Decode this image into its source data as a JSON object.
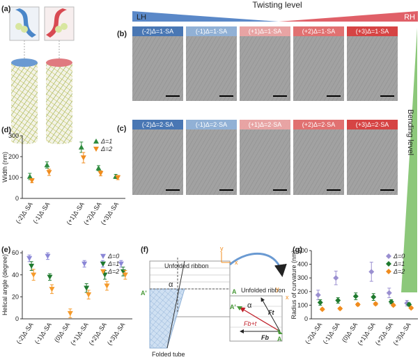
{
  "panel_labels": [
    "(a)",
    "(b)",
    "(c)",
    "(d)",
    "(e)",
    "(f)",
    "(g)"
  ],
  "twisting": {
    "left": "LH",
    "title": "Twisting level",
    "right": "RH"
  },
  "bending": "Bending level",
  "row_b": [
    "(-2)Δ=1·SA",
    "(-1)Δ=1·SA",
    "(+1)Δ=1·SA",
    "(+2)Δ=1·SA",
    "(+3)Δ=1·SA"
  ],
  "row_c": [
    "(-2)Δ=2·SA",
    "(-1)Δ=2·SA",
    "(+1)Δ=2·SA",
    "(+2)Δ=2·SA",
    "(+3)Δ=2·SA"
  ],
  "diagram_f": {
    "unfolded_top": "Unfolded ribbon",
    "alpha": "α",
    "a_prime": "A'",
    "a": "A",
    "folded": "Folded tube",
    "unfolded_right": "Unfolded ribbon",
    "alpha2": "α",
    "a_prime2": "A'",
    "a2": "A",
    "ft": "Ft",
    "fb": "Fb",
    "fbt": "Fb+t",
    "y": "y",
    "x": "x",
    "y2": "y",
    "x2": "x"
  },
  "chart_data": [
    {
      "type": "scatter",
      "y_label": "Width (nm)",
      "categories": [
        "(-2)Δ·SA",
        "(-1)Δ·SA",
        null,
        "(+1)Δ·SA",
        "(+2)Δ·SA",
        "(+3)Δ·SA"
      ],
      "ylim": [
        0,
        300
      ],
      "yticks": [
        0,
        100,
        200,
        300
      ],
      "legend": "upper right",
      "series": [
        {
          "name": "Δ=1",
          "color": "#2e8b3e",
          "marker": "triangle-up",
          "values": [
            105,
            160,
            null,
            245,
            145,
            105
          ],
          "errors": [
            15,
            15,
            null,
            25,
            12,
            10
          ]
        },
        {
          "name": "Δ=2",
          "color": "#f08c1e",
          "marker": "triangle-down",
          "values": [
            85,
            125,
            null,
            195,
            120,
            100
          ],
          "errors": [
            10,
            15,
            null,
            25,
            12,
            10
          ]
        }
      ]
    },
    {
      "type": "scatter",
      "y_label": "Helical angle (degree)",
      "categories": [
        "(-2)Δ·SA",
        "(-1)Δ·SA",
        "(0)Δ·SA",
        "(+1)Δ·SA",
        "(+2)Δ·SA",
        "(+3)Δ·SA"
      ],
      "ylim": [
        0,
        62
      ],
      "yticks": [
        0,
        20,
        40,
        60
      ],
      "legend": "upper right",
      "series": [
        {
          "name": "Δ=0",
          "color": "#8a86d6",
          "marker": "triangle-down",
          "values": [
            55,
            57,
            null,
            50,
            50,
            50
          ],
          "errors": [
            3,
            3,
            null,
            3,
            3,
            3
          ]
        },
        {
          "name": "Δ=1",
          "color": "#1f7a2e",
          "marker": "triangle-down",
          "values": [
            48,
            38,
            null,
            28,
            40,
            43
          ],
          "errors": [
            4,
            3,
            null,
            4,
            4,
            4
          ]
        },
        {
          "name": "Δ=2",
          "color": "#f59a2a",
          "marker": "triangle-down",
          "values": [
            40,
            27,
            5,
            22,
            30,
            40
          ],
          "errors": [
            5,
            4,
            4,
            4,
            4,
            4
          ]
        }
      ]
    },
    {
      "type": "scatter",
      "y_label": "Radius of curvature (nm)",
      "categories": [
        "(-2)Δ·SA",
        "(-1)Δ·SA",
        "(0)Δ·SA",
        "(+1)Δ·SA",
        "(+2)Δ·SA",
        "(+3)Δ·SA"
      ],
      "ylim": [
        0,
        500
      ],
      "yticks": [
        0,
        100,
        200,
        300,
        400,
        500
      ],
      "legend": "upper right",
      "series": [
        {
          "name": "Δ=0",
          "color": "#9a8fd0",
          "marker": "diamond",
          "values": [
            175,
            300,
            null,
            345,
            190,
            115
          ],
          "errors": [
            35,
            50,
            null,
            70,
            35,
            20
          ]
        },
        {
          "name": "Δ=1",
          "color": "#1f7a2e",
          "marker": "diamond",
          "values": [
            120,
            135,
            165,
            160,
            125,
            105
          ],
          "errors": [
            20,
            20,
            25,
            25,
            15,
            12
          ]
        },
        {
          "name": "Δ=2",
          "color": "#f08c1e",
          "marker": "diamond",
          "values": [
            70,
            75,
            105,
            110,
            100,
            80
          ],
          "errors": [
            8,
            8,
            10,
            10,
            8,
            8
          ]
        }
      ]
    }
  ]
}
